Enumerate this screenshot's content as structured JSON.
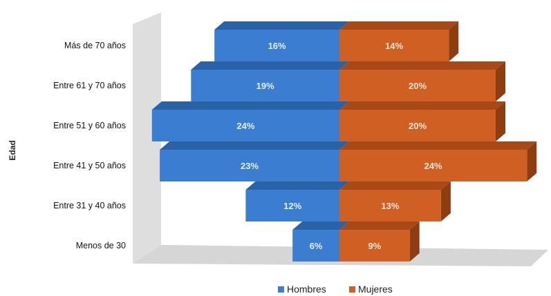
{
  "chart_data": {
    "type": "bar",
    "orientation": "horizontal-butterfly-3d",
    "ylabel": "Edad",
    "categories": [
      "Más de 70 años",
      "Entre 61 y 70 años",
      "Entre 51 y 60 años",
      "Entre 41 y 50 años",
      "Entre 31 y 40 años",
      "Menos de 30"
    ],
    "series": [
      {
        "name": "Hombres",
        "values": [
          16,
          19,
          24,
          23,
          12,
          6
        ],
        "labels": [
          "16%",
          "19%",
          "24%",
          "23%",
          "12%",
          "6%"
        ],
        "color": "#3a7dd1"
      },
      {
        "name": "Mujeres",
        "values": [
          14,
          20,
          20,
          24,
          13,
          9
        ],
        "labels": [
          "14%",
          "20%",
          "20%",
          "24%",
          "13%",
          "9%"
        ],
        "color": "#cf5f22"
      }
    ],
    "legend_position": "bottom",
    "grid": false
  }
}
